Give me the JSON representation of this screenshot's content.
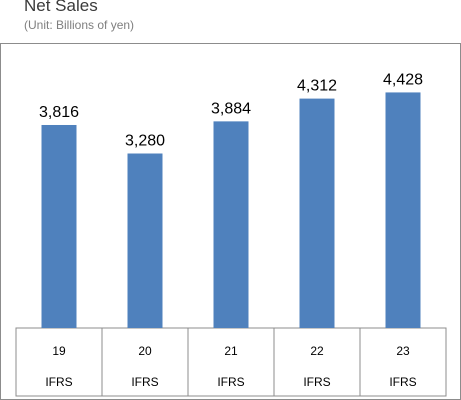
{
  "header": {
    "title": "Net Sales",
    "subtitle": "(Unit: Billions of yen)"
  },
  "chart_data": {
    "type": "bar",
    "title": "Net Sales",
    "subtitle": "(Unit: Billions of yen)",
    "categories": [
      "19",
      "20",
      "21",
      "22",
      "23"
    ],
    "category_sublabels": [
      "IFRS",
      "IFRS",
      "IFRS",
      "IFRS",
      "IFRS"
    ],
    "values": [
      3816,
      3280,
      3884,
      4312,
      4428
    ],
    "value_labels": [
      "3,816",
      "3,280",
      "3,884",
      "4,312",
      "4,428"
    ],
    "bar_color": "#4f81bd",
    "grid": false,
    "legend": "none"
  }
}
